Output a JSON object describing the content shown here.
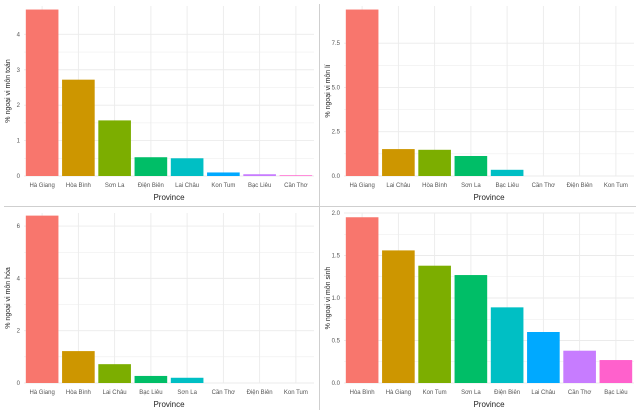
{
  "colors": {
    "palette8": [
      "#F8766D",
      "#CD9600",
      "#7CAE00",
      "#00BE67",
      "#00BFC4",
      "#00A9FF",
      "#C77CFF",
      "#FF61CC"
    ],
    "grid": "#ebebeb",
    "divider": "#cfcfcf"
  },
  "chart_data": [
    {
      "type": "bar",
      "title": "",
      "xlabel": "Province",
      "ylabel": "% ngoại vi môn toán",
      "categories": [
        "Hà Giang",
        "Hòa Bình",
        "Sơn La",
        "Điện Biên",
        "Lai Châu",
        "Kon Tum",
        "Bạc Liêu",
        "Cần Thơ"
      ],
      "values": [
        4.7,
        2.72,
        1.57,
        0.53,
        0.5,
        0.1,
        0.05,
        0.02
      ],
      "ylim": [
        0,
        4.8
      ],
      "yticks": [
        0,
        1,
        2,
        3,
        4
      ],
      "ytick_labels": [
        "0",
        "1",
        "2",
        "3",
        "4"
      ],
      "grid": true,
      "legend": "none"
    },
    {
      "type": "bar",
      "title": "",
      "xlabel": "Province",
      "ylabel": "% ngoại vi môn lí",
      "categories": [
        "Hà Giang",
        "Lai Châu",
        "Hòa Bình",
        "Sơn La",
        "Bạc Liêu",
        "Cần Thơ",
        "Điện Biên",
        "Kon Tum"
      ],
      "values": [
        9.4,
        1.52,
        1.48,
        1.13,
        0.35,
        0,
        0,
        0
      ],
      "ylim": [
        0,
        9.6
      ],
      "yticks": [
        0,
        2.5,
        5,
        7.5
      ],
      "ytick_labels": [
        "0.0",
        "2.5",
        "5.0",
        "7.5"
      ],
      "grid": true,
      "legend": "none"
    },
    {
      "type": "bar",
      "title": "",
      "xlabel": "Province",
      "ylabel": "% ngoại vi môn hóa",
      "categories": [
        "Hà Giang",
        "Hòa Bình",
        "Lai Châu",
        "Bạc Liêu",
        "Sơn La",
        "Cần Thơ",
        "Điện Biên",
        "Kon Tum"
      ],
      "values": [
        6.4,
        1.22,
        0.72,
        0.27,
        0.2,
        0,
        0,
        0
      ],
      "ylim": [
        0,
        6.5
      ],
      "yticks": [
        0,
        2,
        4,
        6
      ],
      "ytick_labels": [
        "0",
        "2",
        "4",
        "6"
      ],
      "grid": true,
      "legend": "none"
    },
    {
      "type": "bar",
      "title": "",
      "xlabel": "Province",
      "ylabel": "% ngoại vi môn sinh",
      "categories": [
        "Hòa Bình",
        "Hà Giang",
        "Kon Tum",
        "Sơn La",
        "Điện Biên",
        "Lai Châu",
        "Cần Thơ",
        "Bạc Liêu"
      ],
      "values": [
        1.95,
        1.56,
        1.38,
        1.27,
        0.89,
        0.6,
        0.38,
        0.27
      ],
      "ylim": [
        0,
        2.0
      ],
      "yticks": [
        0,
        0.5,
        1,
        1.5,
        2
      ],
      "ytick_labels": [
        "0.0",
        "0.5",
        "1.0",
        "1.5",
        "2.0"
      ],
      "grid": true,
      "legend": "none"
    }
  ]
}
